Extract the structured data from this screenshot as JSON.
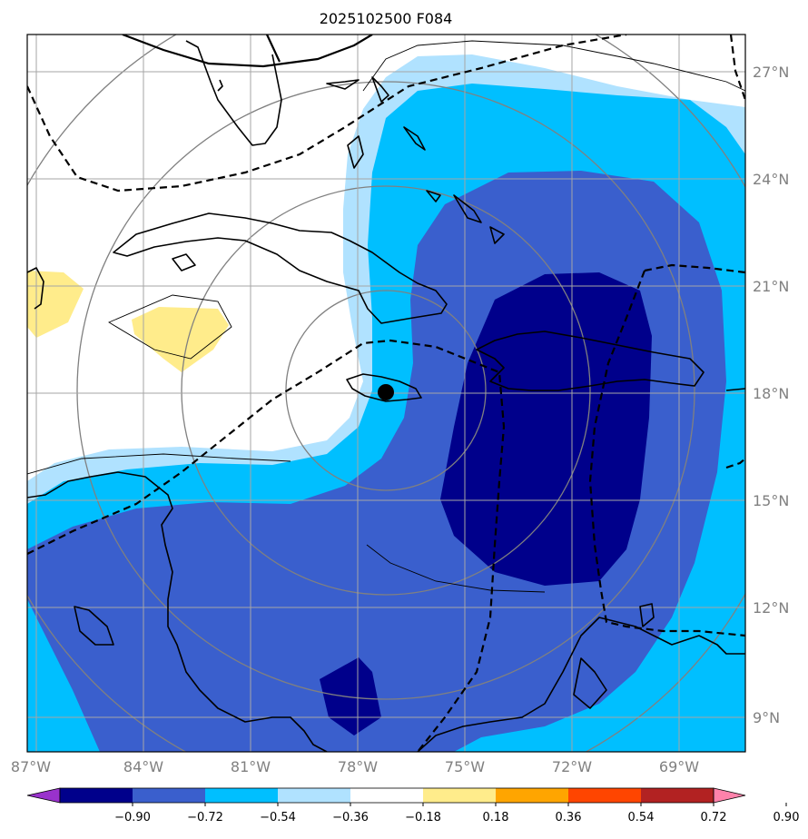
{
  "title": "2025102500 F084",
  "map": {
    "lon_range": [
      -87,
      -68
    ],
    "lat_range": [
      8,
      28
    ],
    "lon_ticks": [
      "87°W",
      "84°W",
      "81°W",
      "78°W",
      "75°W",
      "72°W",
      "69°W"
    ],
    "lat_ticks": [
      "27°N",
      "24°N",
      "21°N",
      "18°N",
      "15°N",
      "12°N",
      "9°N"
    ],
    "grid": true,
    "storm_marker": {
      "lon": -76.8,
      "lat": 18.0,
      "label": ""
    }
  },
  "colorbar": {
    "levels": [
      "−0.90",
      "−0.72",
      "−0.54",
      "−0.36",
      "−0.18",
      "0.18",
      "0.36",
      "0.54",
      "0.72",
      "0.90"
    ],
    "colors": [
      "#9932cc",
      "#00008b",
      "#3a5fcd",
      "#00bfff",
      "#b0e2ff",
      "#ffffff",
      "#ffec8b",
      "#ffa500",
      "#ff4500",
      "#b22222",
      "#ff82ab"
    ],
    "extend": "both"
  },
  "colors": {
    "darkest_blue": "#00008b",
    "royal_blue": "#3a5fcd",
    "deep_sky_blue": "#00bfff",
    "light_sky_blue": "#b0e2ff",
    "light_yellow": "#ffec8b",
    "range_rings": "#808080",
    "coastline": "#000000"
  }
}
